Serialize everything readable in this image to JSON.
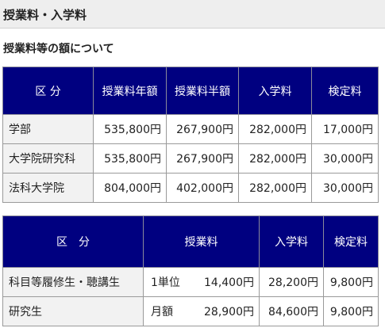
{
  "page": {
    "title": "授業料・入学料"
  },
  "section": {
    "title": "授業料等の額について"
  },
  "table1": {
    "headers": [
      "区 分",
      "授業料年額",
      "授業料半額",
      "入学料",
      "検定料"
    ],
    "rows": [
      {
        "label": "学部",
        "cells": [
          "535,800円",
          "267,900円",
          "282,000円",
          "17,000円"
        ]
      },
      {
        "label": "大学院研究科",
        "cells": [
          "535,800円",
          "267,900円",
          "282,000円",
          "30,000円"
        ]
      },
      {
        "label": "法科大学院",
        "cells": [
          "804,000円",
          "402,000円",
          "282,000円",
          "30,000円"
        ]
      }
    ]
  },
  "table2": {
    "headers": [
      "区　分",
      "授業料",
      "入学料",
      "検定料"
    ],
    "rows": [
      {
        "label": "科目等履修生・聴講生",
        "fee_unit": "1単位",
        "fee_amount": "14,400円",
        "admission": "28,200円",
        "exam": "9,800円"
      },
      {
        "label": "研究生",
        "fee_unit": "月額",
        "fee_amount": "28,900円",
        "admission": "84,600円",
        "exam": "9,800円"
      }
    ]
  },
  "colors": {
    "header_bg": "#000080",
    "header_text": "#ffffff",
    "row_label_bg": "#f2f2f2",
    "page_header_bg": "#eeeeee"
  }
}
